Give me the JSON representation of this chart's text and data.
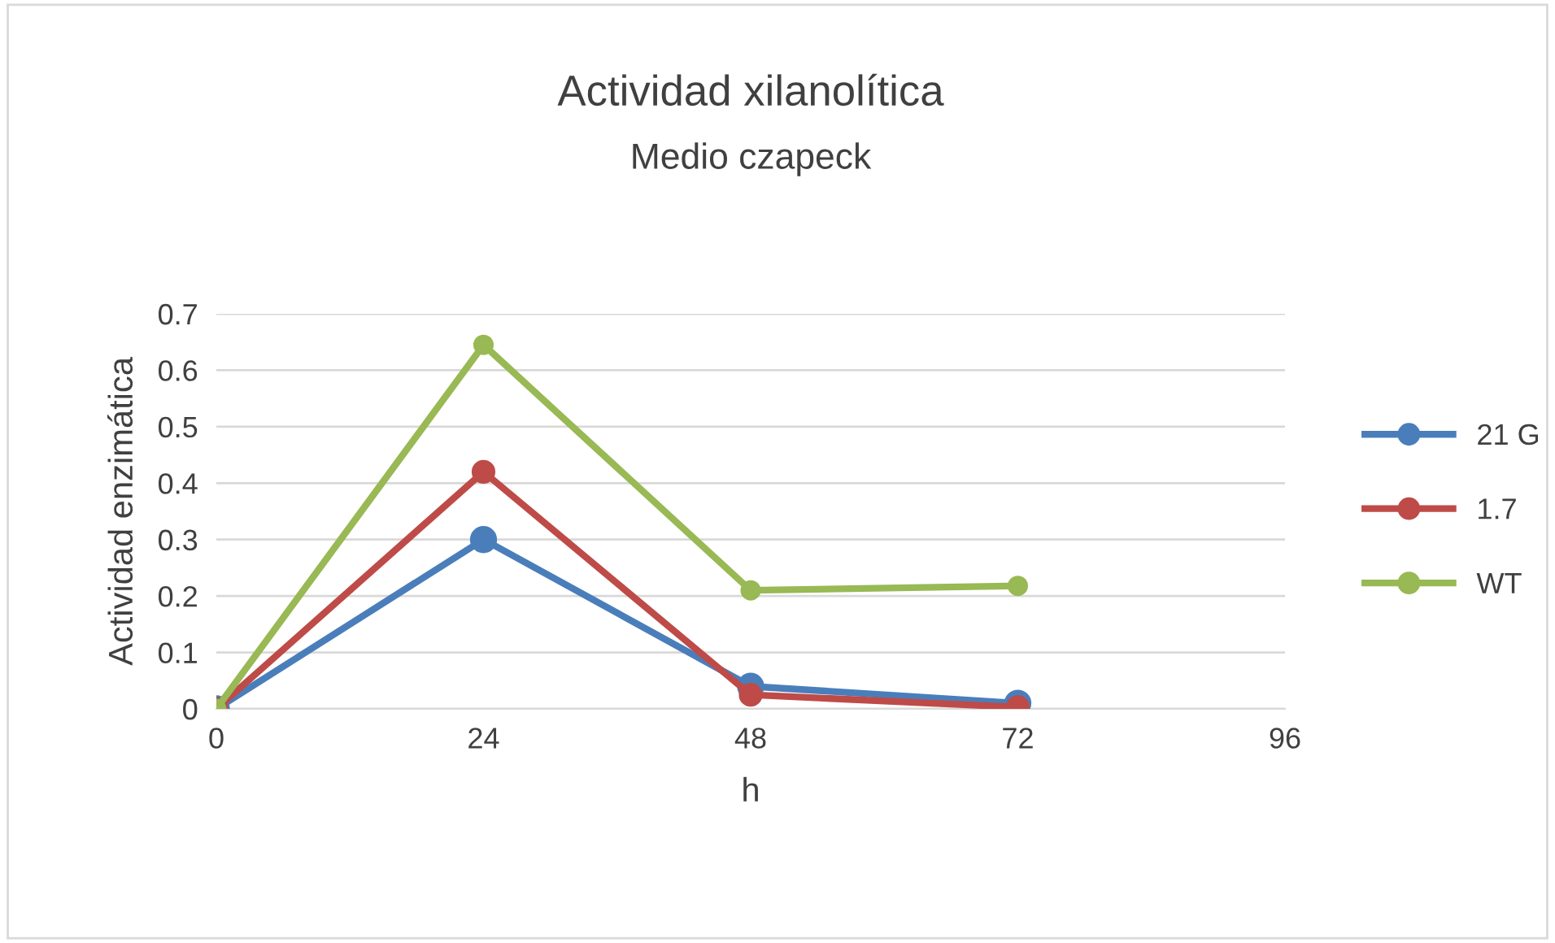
{
  "chart_data": {
    "type": "line",
    "title": "Actividad xilanolítica",
    "subtitle": "Medio czapeck",
    "xlabel": "h",
    "ylabel": "Actividad enzimática",
    "x": [
      0,
      24,
      48,
      72
    ],
    "series": [
      {
        "name": "21 G",
        "color": "#4a7ebb",
        "values": [
          0,
          0.3,
          0.04,
          0.01
        ]
      },
      {
        "name": "1.7",
        "color": "#be4b48",
        "values": [
          0,
          0.42,
          0.025,
          0.003
        ]
      },
      {
        "name": "WT",
        "color": "#98b954",
        "values": [
          0,
          0.645,
          0.21,
          0.218
        ]
      }
    ],
    "xlim": [
      0,
      96
    ],
    "xticks": [
      0,
      24,
      48,
      72,
      96
    ],
    "ylim": [
      0,
      0.7
    ],
    "yticks": [
      0,
      0.1,
      0.2,
      0.3,
      0.4,
      0.5,
      0.6,
      0.7
    ],
    "grid": "y",
    "legend": "right",
    "marker": "circle",
    "line_style": "solid"
  }
}
